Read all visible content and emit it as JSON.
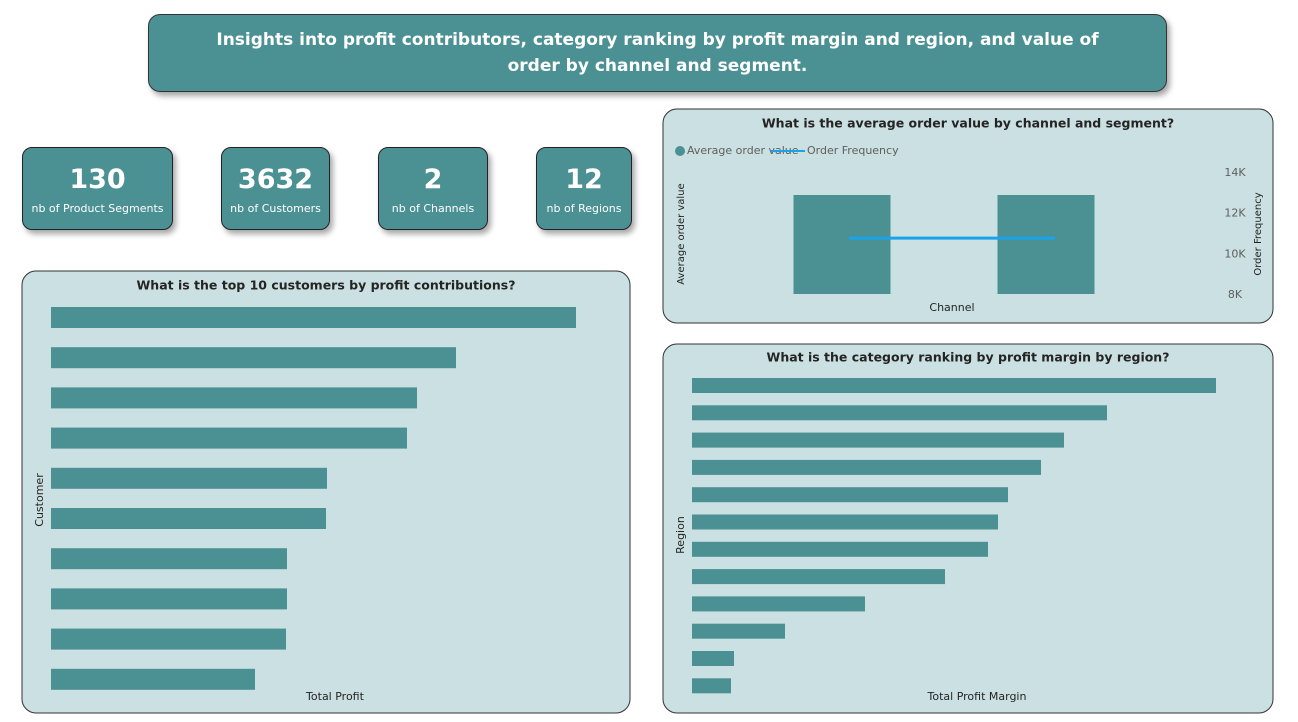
{
  "header": {
    "title": "Insights into profit contributors, category ranking by profit margin and region, and value of order by channel and segment."
  },
  "kpis": [
    {
      "value": 130,
      "label": "nb of Product Segments"
    },
    {
      "value": 3632,
      "label": "nb of Customers"
    },
    {
      "value": 2,
      "label": "nb of Channels"
    },
    {
      "value": 12,
      "label": "nb of Regions"
    }
  ],
  "chart_data": [
    {
      "type": "hbar",
      "title": "What is the top 10 customers by profit contributions?",
      "ylabel": "Customer",
      "xlabel": "Total Profit",
      "color": "#4b9194",
      "values": [
        525,
        405,
        366,
        356,
        276,
        275,
        236,
        236,
        235,
        204
      ]
    },
    {
      "type": "combo",
      "title": "What is the average order value by channel and segment?",
      "xlabel": "Channel",
      "ylabel": "Average order value",
      "y2label": "Order Frequency",
      "categories": [
        null,
        null
      ],
      "series": [
        {
          "name": "Average order value",
          "color": "#4b9194",
          "values": [
            100,
            100
          ]
        },
        {
          "name": "Order Frequency",
          "color": "#1aa3e8",
          "axis": "y2",
          "values": [
            10800,
            10800
          ]
        }
      ],
      "y2lim": [
        8000,
        14000
      ],
      "y2ticks": [
        {
          "value": 8000,
          "label": "8K"
        },
        {
          "value": 10000,
          "label": "10K"
        },
        {
          "value": 12000,
          "label": "12K"
        },
        {
          "value": 14000,
          "label": "14K"
        }
      ]
    },
    {
      "type": "hbar",
      "title": "What is the category ranking by profit margin by region?",
      "ylabel": "Region",
      "xlabel": "Total Profit Margin",
      "color": "#4b9194",
      "values": [
        524,
        415,
        372,
        349,
        316,
        306,
        296,
        253,
        173,
        93,
        42,
        39
      ]
    }
  ]
}
